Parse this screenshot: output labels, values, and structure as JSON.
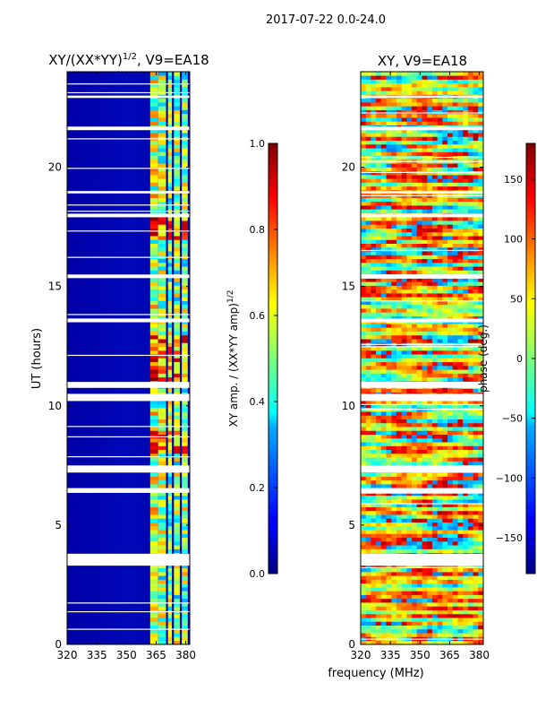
{
  "suptitle": "2017-07-22 0.0-24.0",
  "chart_data": [
    {
      "type": "heatmap",
      "title_main": "XY/(XX*YY)",
      "title_sup": "1/2",
      "title_tail": ", V9=EA18",
      "xlabel": "",
      "ylabel": "UT (hours)",
      "x_range": [
        320,
        382
      ],
      "y_range": [
        0,
        24
      ],
      "x_ticks": [
        320,
        335,
        350,
        365,
        380
      ],
      "y_ticks": [
        0,
        5,
        10,
        15,
        20
      ],
      "colorscale": "jet",
      "colorbar": {
        "range": [
          0.0,
          1.0
        ],
        "ticks": [
          "0.0",
          "0.2",
          "0.4",
          "0.6",
          "0.8",
          "1.0"
        ],
        "label_main": "XY amp. / (XX*YY amp)",
        "label_sup": "1/2"
      }
    },
    {
      "type": "heatmap",
      "title": "XY, V9=EA18",
      "xlabel": "frequency (MHz)",
      "ylabel": "",
      "x_range": [
        320,
        382
      ],
      "y_range": [
        0,
        24
      ],
      "x_ticks": [
        320,
        335,
        350,
        365,
        380
      ],
      "y_ticks": [
        0,
        5,
        10,
        15,
        20
      ],
      "colorscale": "jet",
      "colorbar": {
        "range": [
          -180,
          180
        ],
        "ticks": [
          "−150",
          "−100",
          "−50",
          "0",
          "50",
          "100",
          "150"
        ],
        "tick_values": [
          -150,
          -100,
          -50,
          0,
          50,
          100,
          150
        ],
        "label": "phase (deg.)"
      }
    }
  ]
}
